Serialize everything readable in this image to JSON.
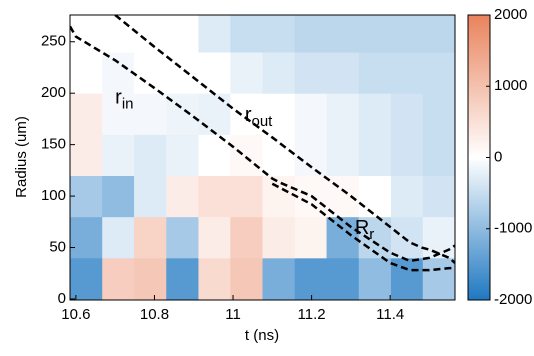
{
  "chart_data": {
    "type": "heatmap",
    "xlabel": "t (ns)",
    "ylabel": "Radius (um)",
    "xlim": [
      10.585,
      11.565
    ],
    "ylim": [
      -1,
      276
    ],
    "xticks": [
      10.6,
      10.8,
      11,
      11.2,
      11.4
    ],
    "yticks": [
      0,
      50,
      100,
      150,
      200,
      250
    ],
    "x_edges": [
      10.585,
      10.667,
      10.748,
      10.83,
      10.912,
      10.993,
      11.075,
      11.157,
      11.238,
      11.32,
      11.402,
      11.483,
      11.565
    ],
    "y_edges": [
      -1,
      40,
      80,
      120,
      160,
      200,
      240,
      276
    ],
    "z": [
      [
        -1500,
        800,
        900,
        -1500,
        600,
        900,
        -1200,
        -1500,
        -1500,
        -1000,
        -1500,
        -800
      ],
      [
        -1200,
        -300,
        700,
        -800,
        300,
        800,
        300,
        200,
        -1200,
        -600,
        -400,
        -200
      ],
      [
        -800,
        -1000,
        -300,
        300,
        500,
        500,
        200,
        100,
        100,
        0,
        -300,
        -400
      ],
      [
        300,
        -200,
        -300,
        -200,
        0,
        100,
        0,
        -100,
        -200,
        -300,
        -400,
        -500
      ],
      [
        300,
        -100,
        -100,
        -150,
        -200,
        0,
        0,
        -100,
        -200,
        -300,
        -400,
        -500
      ],
      [
        0,
        -100,
        0,
        0,
        0,
        -200,
        -300,
        -400,
        -400,
        -500,
        -500,
        -500
      ],
      [
        0,
        0,
        0,
        0,
        -300,
        -500,
        -500,
        -600,
        -600,
        -600,
        -600,
        -600
      ]
    ],
    "clim": [
      -2000,
      2000
    ],
    "cticks": [
      -2000,
      -1000,
      0,
      1000,
      2000
    ],
    "colormap": [
      "#1f78c1",
      "#ffffff",
      "#e9835d"
    ],
    "series": [
      {
        "color": "#000000",
        "x": [
          10.7,
          10.8,
          10.9,
          11.0,
          11.1,
          11.2,
          11.3,
          11.4,
          11.45,
          11.48,
          11.5,
          11.55,
          11.565
        ],
        "values": [
          276,
          245,
          215,
          185,
          157,
          128,
          100,
          70,
          55,
          50,
          48,
          40,
          35
        ]
      },
      {
        "color": "#000000",
        "x": [
          10.585,
          10.6,
          10.7,
          10.8,
          10.9,
          11.0,
          11.1,
          11.12,
          11.2,
          11.3,
          11.4,
          11.45,
          11.5,
          11.55,
          11.565
        ],
        "values": [
          265,
          255,
          232,
          205,
          177,
          148,
          117,
          113,
          100,
          70,
          45,
          37,
          40,
          48,
          52
        ]
      },
      {
        "color": "#000000",
        "x": [
          11.1,
          11.2,
          11.3,
          11.4,
          11.45,
          11.5,
          11.55,
          11.565
        ],
        "values": [
          112,
          92,
          62,
          35,
          28,
          28,
          30,
          30
        ]
      }
    ],
    "annotations": [
      {
        "text": "r",
        "sub": "in",
        "x": 10.7,
        "y": 195
      },
      {
        "text": "r",
        "sub": "out",
        "x": 11.03,
        "y": 178
      },
      {
        "text": "R",
        "sub": "r",
        "x": 11.31,
        "y": 68
      }
    ]
  }
}
